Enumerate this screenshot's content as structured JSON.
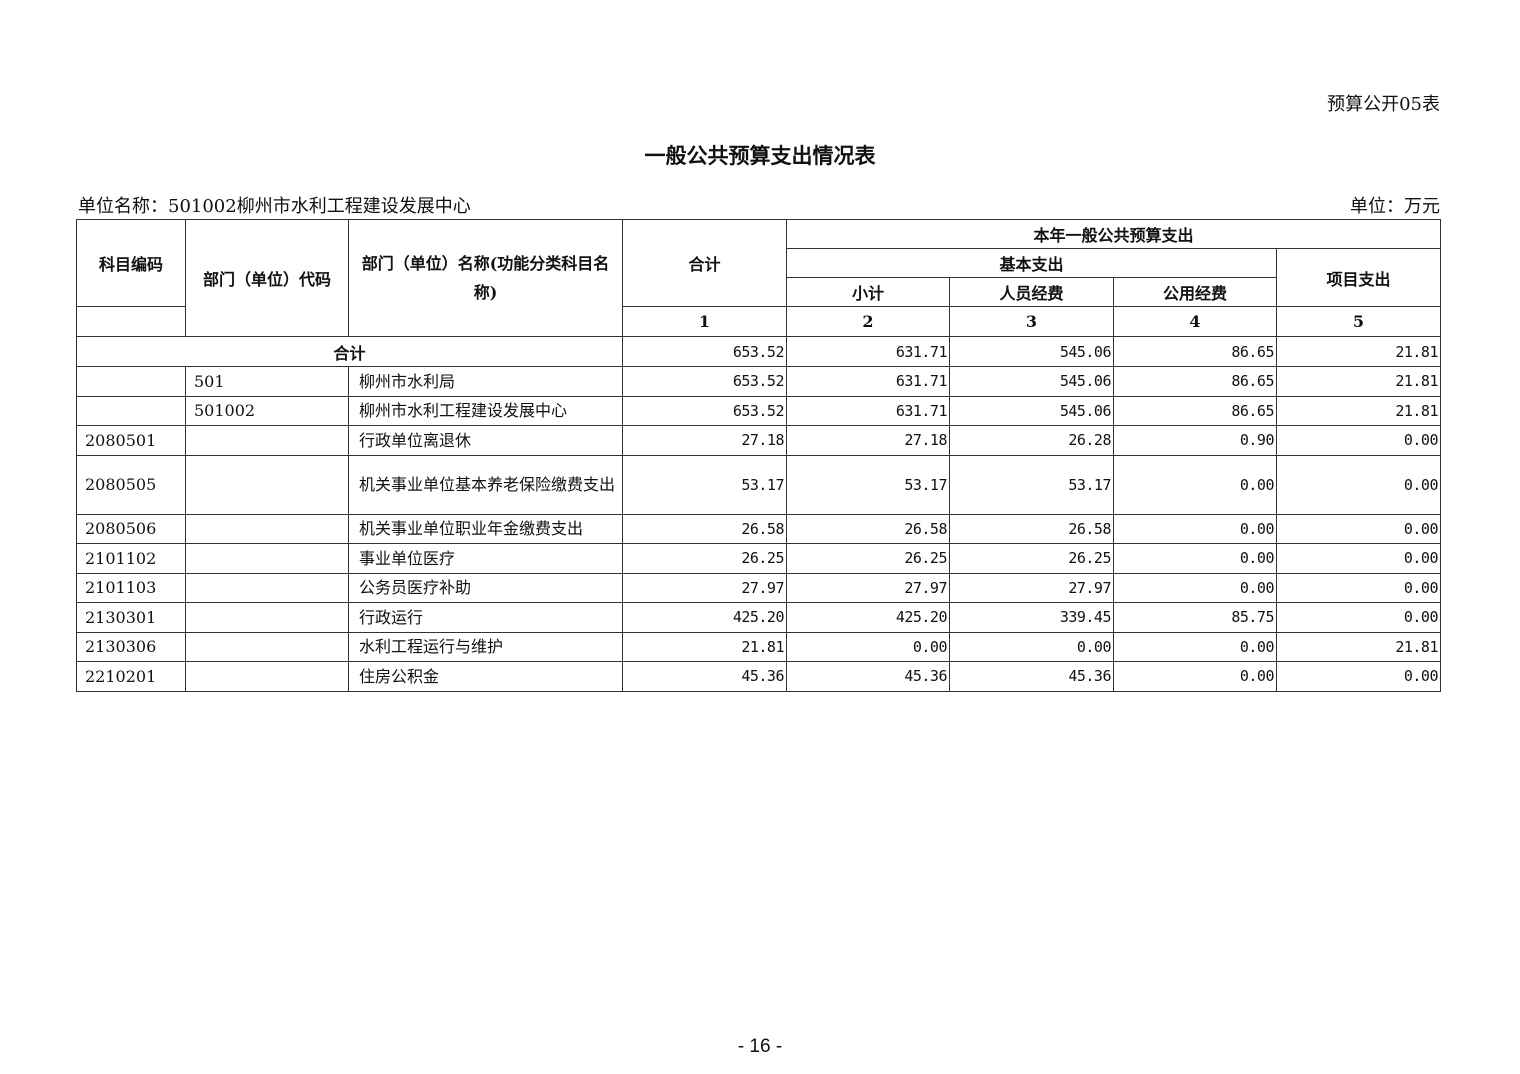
{
  "form_no": "预算公开05表",
  "title": "一般公共预算支出情况表",
  "unit_name": "单位名称：501002柳州市水利工程建设发展中心",
  "unit": "单位：万元",
  "header": {
    "subject_code": "科目编码",
    "dept_code": "部门（单位）代码",
    "dept_name": "部门（单位）名称(功能分类科目名称)",
    "total": "合计",
    "group": "本年一般公共预算支出",
    "basic": "基本支出",
    "subtotal": "小计",
    "personnel": "人员经费",
    "public": "公用经费",
    "project": "项目支出",
    "col_nums": [
      "1",
      "2",
      "3",
      "4",
      "5"
    ]
  },
  "total_row": {
    "label": "合计",
    "values": [
      "653.52",
      "631.71",
      "545.06",
      "86.65",
      "21.81"
    ]
  },
  "rows": [
    {
      "subject_code": "",
      "dept_code": "501",
      "name": "柳州市水利局",
      "values": [
        "653.52",
        "631.71",
        "545.06",
        "86.65",
        "21.81"
      ]
    },
    {
      "subject_code": "",
      "dept_code": "501002",
      "name": "柳州市水利工程建设发展中心",
      "values": [
        "653.52",
        "631.71",
        "545.06",
        "86.65",
        "21.81"
      ]
    },
    {
      "subject_code": "2080501",
      "dept_code": "",
      "name": "行政单位离退休",
      "values": [
        "27.18",
        "27.18",
        "26.28",
        "0.90",
        "0.00"
      ]
    },
    {
      "subject_code": "2080505",
      "dept_code": "",
      "name": "机关事业单位基本养老保险缴费支出",
      "values": [
        "53.17",
        "53.17",
        "53.17",
        "0.00",
        "0.00"
      ]
    },
    {
      "subject_code": "2080506",
      "dept_code": "",
      "name": "机关事业单位职业年金缴费支出",
      "values": [
        "26.58",
        "26.58",
        "26.58",
        "0.00",
        "0.00"
      ]
    },
    {
      "subject_code": "2101102",
      "dept_code": "",
      "name": "事业单位医疗",
      "values": [
        "26.25",
        "26.25",
        "26.25",
        "0.00",
        "0.00"
      ]
    },
    {
      "subject_code": "2101103",
      "dept_code": "",
      "name": "公务员医疗补助",
      "values": [
        "27.97",
        "27.97",
        "27.97",
        "0.00",
        "0.00"
      ]
    },
    {
      "subject_code": "2130301",
      "dept_code": "",
      "name": "行政运行",
      "values": [
        "425.20",
        "425.20",
        "339.45",
        "85.75",
        "0.00"
      ]
    },
    {
      "subject_code": "2130306",
      "dept_code": "",
      "name": "水利工程运行与维护",
      "values": [
        "21.81",
        "0.00",
        "0.00",
        "0.00",
        "21.81"
      ]
    },
    {
      "subject_code": "2210201",
      "dept_code": "",
      "name": "住房公积金",
      "values": [
        "45.36",
        "45.36",
        "45.36",
        "0.00",
        "0.00"
      ]
    }
  ],
  "page_number": "- 16 -"
}
